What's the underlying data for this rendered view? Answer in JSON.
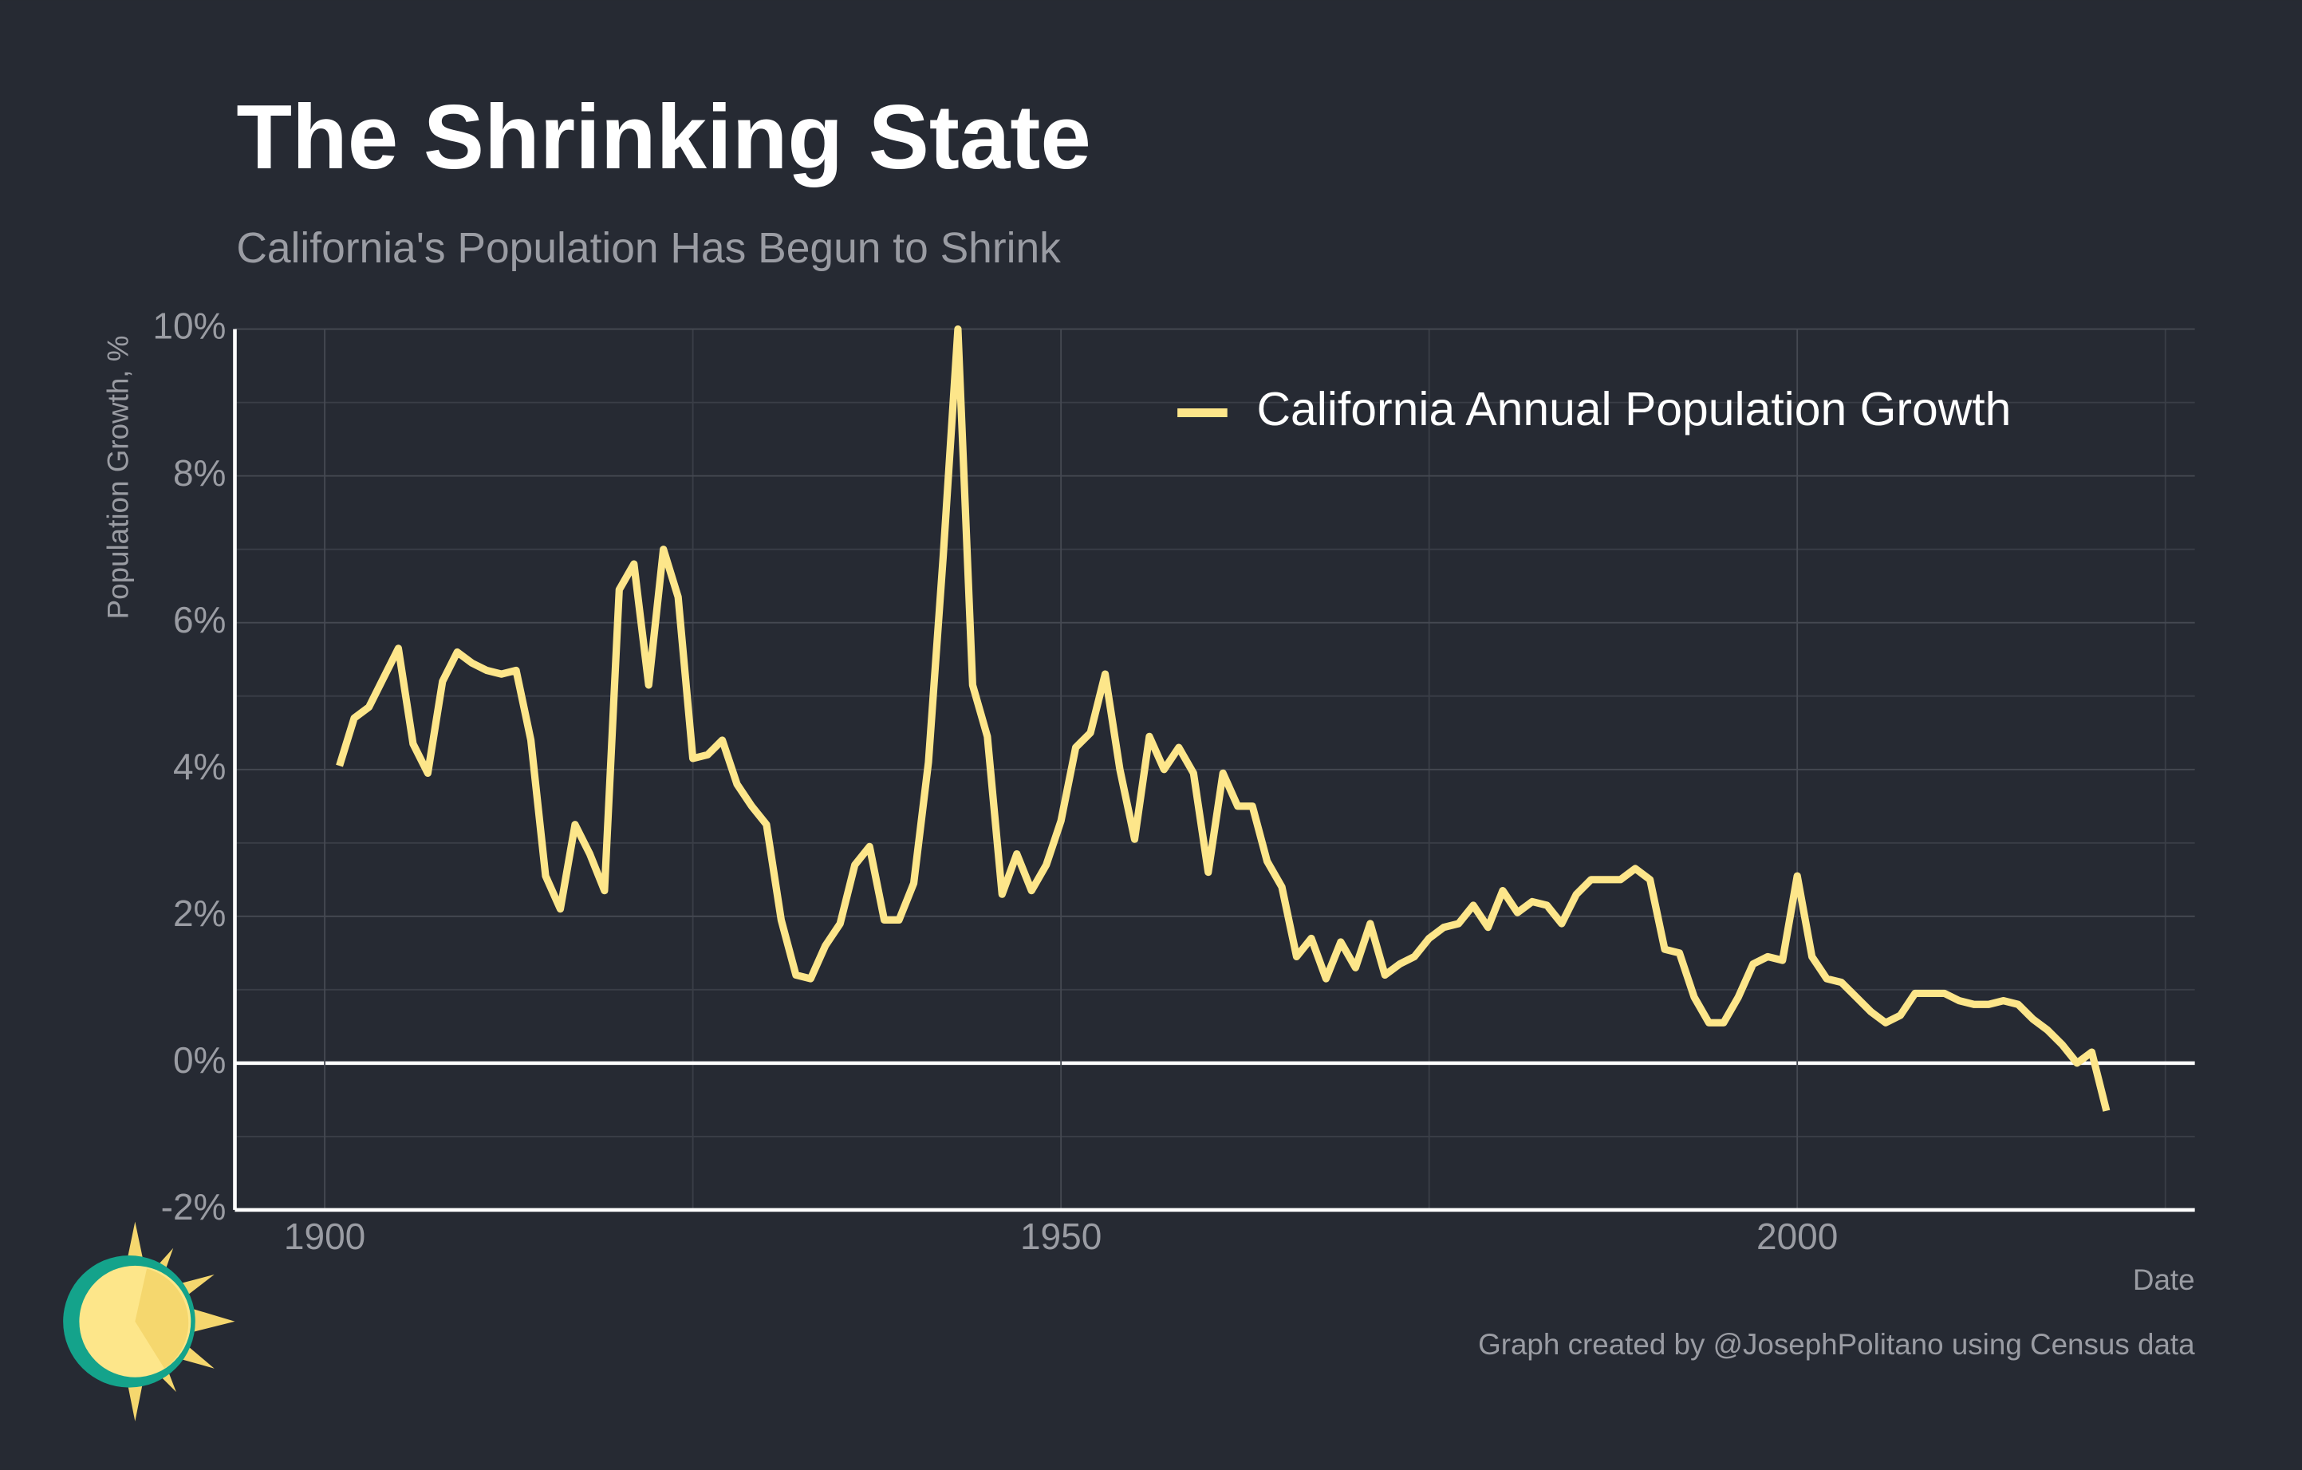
{
  "chart_data": {
    "type": "line",
    "title": "The Shrinking State",
    "subtitle": "California's Population Has Begun to Shrink",
    "y_label": "Population Growth, %",
    "x_label": "Date",
    "caption": "Graph created by @JosephPolitano using Census data",
    "x": [
      1901,
      1902,
      1903,
      1904,
      1905,
      1906,
      1907,
      1908,
      1909,
      1910,
      1911,
      1912,
      1913,
      1914,
      1915,
      1916,
      1917,
      1918,
      1919,
      1920,
      1921,
      1922,
      1923,
      1924,
      1925,
      1926,
      1927,
      1928,
      1929,
      1930,
      1931,
      1932,
      1933,
      1934,
      1935,
      1936,
      1937,
      1938,
      1939,
      1940,
      1941,
      1942,
      1943,
      1944,
      1945,
      1946,
      1947,
      1948,
      1949,
      1950,
      1951,
      1952,
      1953,
      1954,
      1955,
      1956,
      1957,
      1958,
      1959,
      1960,
      1961,
      1962,
      1963,
      1964,
      1965,
      1966,
      1967,
      1968,
      1969,
      1970,
      1971,
      1972,
      1973,
      1974,
      1975,
      1976,
      1977,
      1978,
      1979,
      1980,
      1981,
      1982,
      1983,
      1984,
      1985,
      1986,
      1987,
      1988,
      1989,
      1990,
      1991,
      1992,
      1993,
      1994,
      1995,
      1996,
      1997,
      1998,
      1999,
      2000,
      2001,
      2002,
      2003,
      2004,
      2005,
      2006,
      2007,
      2008,
      2009,
      2010,
      2011,
      2012,
      2013,
      2014,
      2015,
      2016,
      2017,
      2018,
      2019,
      2020,
      2021
    ],
    "series": [
      {
        "name": "California Annual Population Growth",
        "color": "#fde68a",
        "values": [
          4.05,
          4.7,
          4.85,
          5.25,
          5.65,
          4.35,
          3.95,
          5.2,
          5.6,
          5.45,
          5.35,
          5.3,
          5.35,
          4.4,
          2.55,
          2.1,
          3.25,
          2.85,
          2.35,
          6.45,
          6.8,
          5.15,
          7.0,
          6.35,
          4.15,
          4.2,
          4.4,
          3.8,
          3.5,
          3.25,
          1.95,
          1.2,
          1.15,
          1.6,
          1.9,
          2.7,
          2.95,
          1.95,
          1.95,
          2.45,
          4.1,
          6.9,
          10.0,
          5.15,
          4.45,
          2.3,
          2.85,
          2.35,
          2.7,
          3.3,
          4.3,
          4.5,
          5.3,
          4.0,
          3.05,
          4.45,
          4.0,
          4.3,
          3.95,
          2.6,
          3.95,
          3.5,
          3.5,
          2.75,
          2.4,
          1.45,
          1.7,
          1.15,
          1.65,
          1.3,
          1.9,
          1.2,
          1.35,
          1.45,
          1.7,
          1.85,
          1.9,
          2.15,
          1.85,
          2.35,
          2.05,
          2.2,
          2.15,
          1.9,
          2.3,
          2.5,
          2.5,
          2.5,
          2.65,
          2.5,
          1.55,
          1.5,
          0.9,
          0.55,
          0.55,
          0.9,
          1.35,
          1.45,
          1.4,
          2.55,
          1.45,
          1.15,
          1.1,
          0.9,
          0.7,
          0.55,
          0.65,
          0.95,
          0.95,
          0.95,
          0.85,
          0.8,
          0.8,
          0.85,
          0.8,
          0.6,
          0.45,
          0.25,
          0.0,
          0.15,
          -0.65
        ]
      }
    ],
    "xlim": [
      1893.9,
      2027
    ],
    "ylim": [
      -2,
      10
    ],
    "xticks": [
      1900,
      1950,
      2000
    ],
    "xminor": [
      1925,
      1975,
      2025
    ],
    "yticks": [
      {
        "value": -2,
        "label": "-2%"
      },
      {
        "value": 0,
        "label": "0%"
      },
      {
        "value": 2,
        "label": "2%"
      },
      {
        "value": 4,
        "label": "4%"
      },
      {
        "value": 6,
        "label": "6%"
      },
      {
        "value": 8,
        "label": "8%"
      },
      {
        "value": 10,
        "label": "10%"
      }
    ],
    "yminor": [
      -1,
      1,
      3,
      5,
      7,
      9
    ],
    "grid": true,
    "legend": "top-right"
  }
}
